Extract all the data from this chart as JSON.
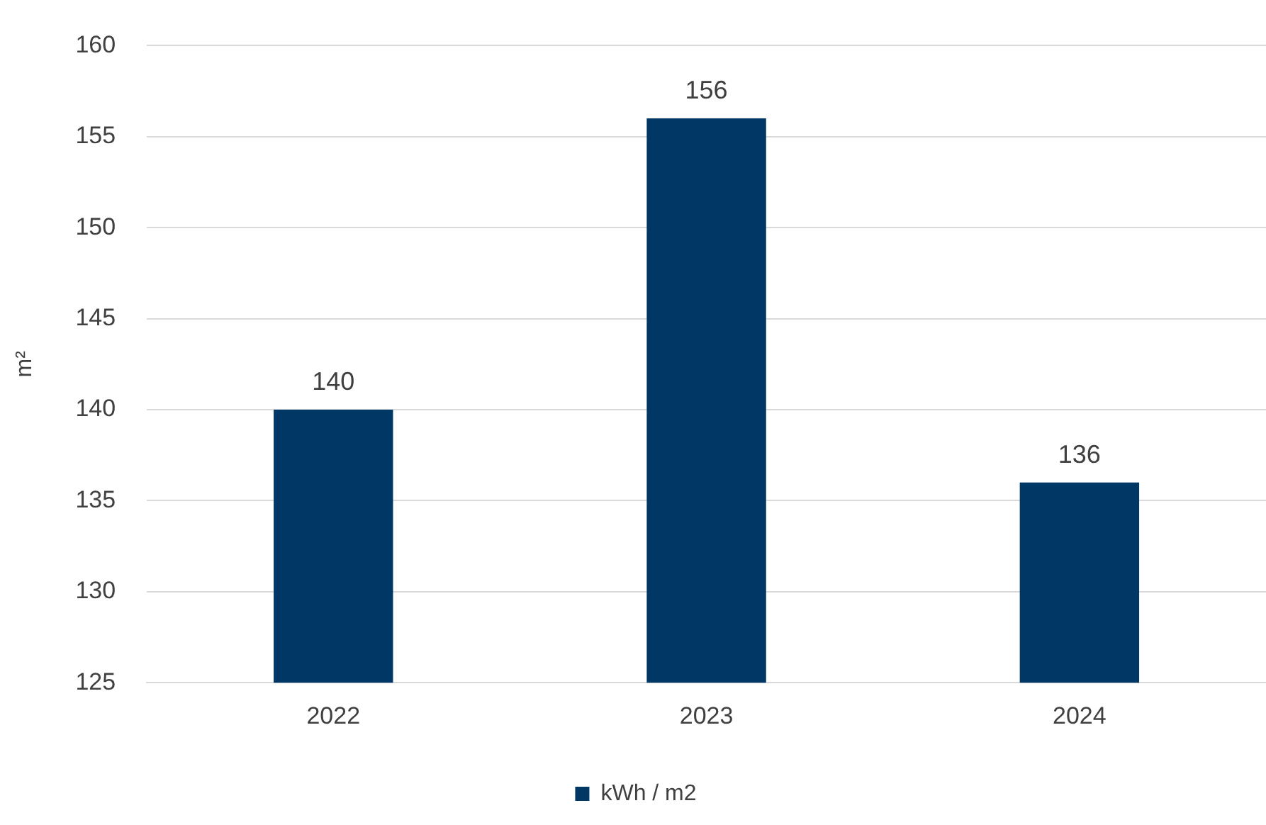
{
  "chart_data": {
    "type": "bar",
    "ylabel": "m²",
    "categories": [
      "2022",
      "2023",
      "2024"
    ],
    "series": [
      {
        "name": "kWh / m2",
        "color": "#003764",
        "values": [
          140,
          156,
          136
        ]
      }
    ],
    "ylim": [
      125,
      160
    ],
    "yticks": [
      125,
      130,
      135,
      140,
      145,
      150,
      155,
      160
    ],
    "grid": "y",
    "legend": "bottom",
    "data_labels": true
  }
}
